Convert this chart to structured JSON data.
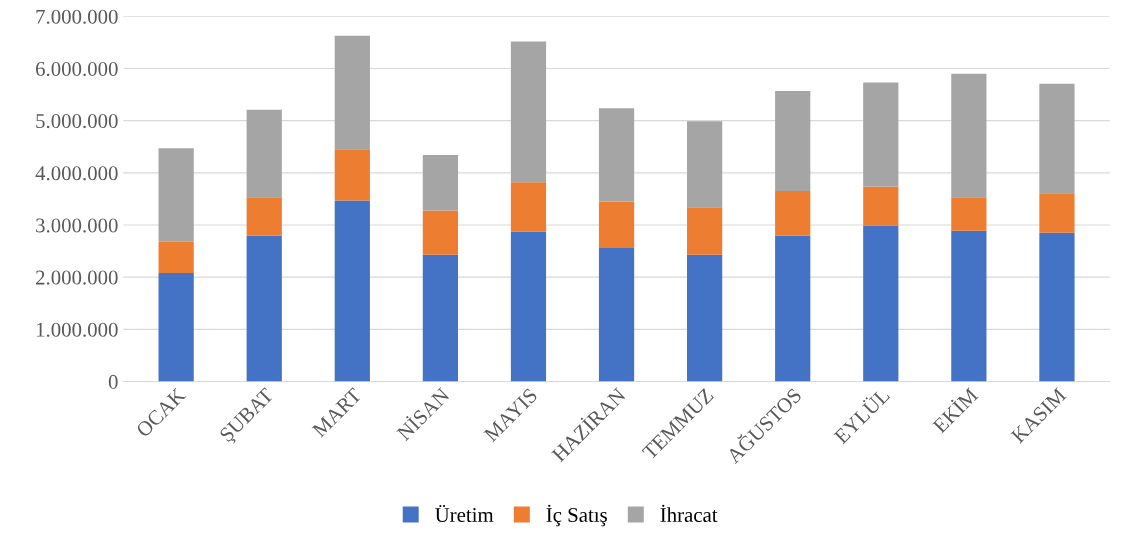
{
  "chart_data": {
    "type": "bar",
    "stacked": true,
    "categories": [
      "OCAK",
      "ŞUBAT",
      "MART",
      "NİSAN",
      "MAYIS",
      "HAZİRAN",
      "TEMMUZ",
      "AĞUSTOS",
      "EYLÜL",
      "EKİM",
      "KASIM"
    ],
    "series": [
      {
        "name": "Üretim",
        "color": "#4472c4",
        "values": [
          2080000,
          2800000,
          3470000,
          2430000,
          2870000,
          2560000,
          2430000,
          2800000,
          2990000,
          2890000,
          2850000
        ]
      },
      {
        "name": "İç Satış",
        "color": "#ed7d31",
        "values": [
          600000,
          730000,
          980000,
          850000,
          950000,
          890000,
          910000,
          850000,
          750000,
          640000,
          760000
        ]
      },
      {
        "name": "İhracat",
        "color": "#a5a5a5",
        "values": [
          1790000,
          1680000,
          2180000,
          1060000,
          2700000,
          1790000,
          1650000,
          1920000,
          1990000,
          2370000,
          2100000
        ]
      }
    ],
    "ylim": [
      0,
      7000000
    ],
    "yticks": [
      {
        "value": 0,
        "label": "0"
      },
      {
        "value": 1000000,
        "label": "1.000.000"
      },
      {
        "value": 2000000,
        "label": "2.000.000"
      },
      {
        "value": 3000000,
        "label": "3.000.000"
      },
      {
        "value": 4000000,
        "label": "4.000.000"
      },
      {
        "value": 5000000,
        "label": "5.000.000"
      },
      {
        "value": 6000000,
        "label": "6.000.000"
      },
      {
        "value": 7000000,
        "label": "7.000.000"
      }
    ],
    "grid": "y",
    "legend": "bottom"
  }
}
